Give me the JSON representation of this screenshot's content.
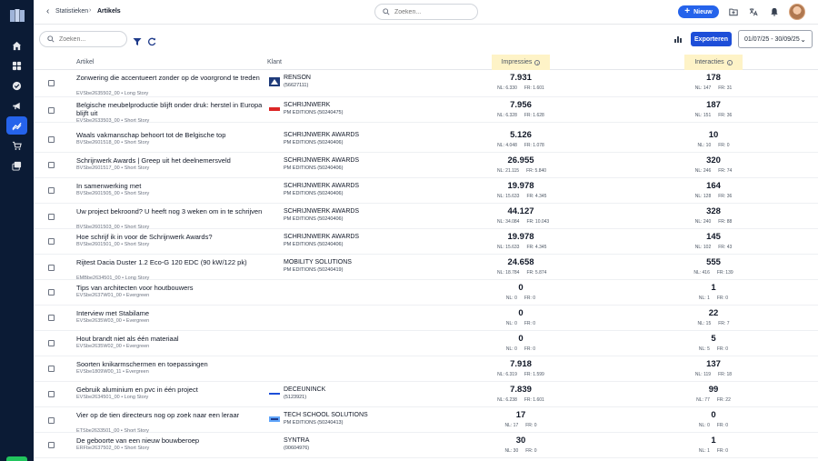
{
  "breadcrumb": {
    "parent": "Statistieken",
    "current": "Artikels"
  },
  "top_search": {
    "placeholder": "Zoeken..."
  },
  "new_button": {
    "label": "Nieuw"
  },
  "filter": {
    "search_placeholder": "Zoeken...",
    "export_label": "Exporteren",
    "date_range": "01/07/25 - 30/09/25"
  },
  "table": {
    "headers": {
      "artikel": "Artikel",
      "klant": "Klant",
      "impressies": "Impressies",
      "interacties": "Interacties"
    },
    "rows": [
      {
        "title": "Zonwering die accentueert zonder op de voorgrond te treden",
        "sub": "EVSbe2635502_00 • Long Story",
        "client": "RENSON",
        "client_sub": "(56627111)",
        "logo": "renson-logo",
        "imp": "7.931",
        "imp_nl": "NL: 6.330",
        "imp_fr": "FR: 1.601",
        "int": "178",
        "int_nl": "NL: 147",
        "int_fr": "FR: 31"
      },
      {
        "title": "Belgische meubelproductie blijft onder druk: herstel in Europa blijft uit",
        "sub": "EVSbe2633503_00 • Short Story",
        "client": "SCHRIJNWERK",
        "client_sub": "PM EDITIONS (50240475)",
        "logo": "red-logo",
        "imp": "7.956",
        "imp_nl": "NL: 6.328",
        "imp_fr": "FR: 1.628",
        "int": "187",
        "int_nl": "NL: 151",
        "int_fr": "FR: 36"
      },
      {
        "title": "Waals vakmanschap behoort tot de Belgische top",
        "sub": "BVSbe2601518_00 • Short Story",
        "client": "SCHRIJNWERK AWARDS",
        "client_sub": "PM EDITIONS (50240406)",
        "logo": "",
        "imp": "5.126",
        "imp_nl": "NL: 4.048",
        "imp_fr": "FR: 1.078",
        "int": "10",
        "int_nl": "NL: 10",
        "int_fr": "FR: 0"
      },
      {
        "title": "Schrijnwerk Awards | Greep uit het deelnemersveld",
        "sub": "BVSbe2601517_00 • Short Story",
        "client": "SCHRIJNWERK AWARDS",
        "client_sub": "PM EDITIONS (50240406)",
        "logo": "",
        "imp": "26.955",
        "imp_nl": "NL: 21.115",
        "imp_fr": "FR: 5.840",
        "int": "320",
        "int_nl": "NL: 246",
        "int_fr": "FR: 74"
      },
      {
        "title": "In samenwerking met",
        "sub": "BVSbe2601505_00 • Short Story",
        "client": "SCHRIJNWERK AWARDS",
        "client_sub": "PM EDITIONS (50240406)",
        "logo": "",
        "imp": "19.978",
        "imp_nl": "NL: 15.633",
        "imp_fr": "FR: 4.345",
        "int": "164",
        "int_nl": "NL: 128",
        "int_fr": "FR: 36"
      },
      {
        "title": "Uw project bekroond? U heeft nog 3 weken om in te schrijven",
        "sub": "BVSbe2601503_00 • Short Story",
        "client": "SCHRIJNWERK AWARDS",
        "client_sub": "PM EDITIONS (50240406)",
        "logo": "",
        "imp": "44.127",
        "imp_nl": "NL: 34.084",
        "imp_fr": "FR: 10.043",
        "int": "328",
        "int_nl": "NL: 240",
        "int_fr": "FR: 88"
      },
      {
        "title": "Hoe schrijf ik in voor de Schrijnwerk Awards?",
        "sub": "BVSbe2601501_00 • Short Story",
        "client": "SCHRIJNWERK AWARDS",
        "client_sub": "PM EDITIONS (50240406)",
        "logo": "",
        "imp": "19.978",
        "imp_nl": "NL: 15.633",
        "imp_fr": "FR: 4.345",
        "int": "145",
        "int_nl": "NL: 102",
        "int_fr": "FR: 43"
      },
      {
        "title": "Rijtest Dacia Duster 1.2 Eco-G 120 EDC (90 kW/122 pk)",
        "sub": "EMBbe2634501_00 • Long Story",
        "client": "MOBILITY SOLUTIONS",
        "client_sub": "PM EDITIONS (50240419)",
        "logo": "",
        "imp": "24.658",
        "imp_nl": "NL: 18.784",
        "imp_fr": "FR: 5.874",
        "int": "555",
        "int_nl": "NL: 416",
        "int_fr": "FR: 139"
      },
      {
        "title": "Tips van architecten voor houtbouwers",
        "sub": "EVSbe2637W01_00 • Evergreen",
        "client": "",
        "client_sub": "",
        "logo": "",
        "imp": "0",
        "imp_nl": "NL: 0",
        "imp_fr": "FR: 0",
        "int": "1",
        "int_nl": "NL: 1",
        "int_fr": "FR: 0"
      },
      {
        "title": "Interview met Stabilame",
        "sub": "EVSbe2635W03_00 • Evergreen",
        "client": "",
        "client_sub": "",
        "logo": "",
        "imp": "0",
        "imp_nl": "NL: 0",
        "imp_fr": "FR: 0",
        "int": "22",
        "int_nl": "NL: 15",
        "int_fr": "FR: 7"
      },
      {
        "title": "Hout brandt niet als één materiaal",
        "sub": "EVSbe2635W02_00 • Evergreen",
        "client": "",
        "client_sub": "",
        "logo": "",
        "imp": "0",
        "imp_nl": "NL: 0",
        "imp_fr": "FR: 0",
        "int": "5",
        "int_nl": "NL: 5",
        "int_fr": "FR: 0"
      },
      {
        "title": "Soorten knikarmschermen en toepassingen",
        "sub": "EVSbe1809W00_11 • Evergreen",
        "client": "",
        "client_sub": "",
        "logo": "",
        "imp": "7.918",
        "imp_nl": "NL: 6.319",
        "imp_fr": "FR: 1.599",
        "int": "137",
        "int_nl": "NL: 119",
        "int_fr": "FR: 18"
      },
      {
        "title": "Gebruik aluminium en pvc in één project",
        "sub": "EVSbe2634501_00 • Long Story",
        "client": "DECEUNINCK",
        "client_sub": "(5123921)",
        "logo": "deceuninck-logo",
        "imp": "7.839",
        "imp_nl": "NL: 6.238",
        "imp_fr": "FR: 1.601",
        "int": "99",
        "int_nl": "NL: 77",
        "int_fr": "FR: 22"
      },
      {
        "title": "Vier op de tien directeurs nog op zoek naar een leraar",
        "sub": "ETSbe2633501_00 • Short Story",
        "client": "TECH SCHOOL SOLUTIONS",
        "client_sub": "PM EDITIONS (50240413)",
        "logo": "tech-logo",
        "imp": "17",
        "imp_nl": "NL: 17",
        "imp_fr": "FR: 0",
        "int": "0",
        "int_nl": "NL: 0",
        "int_fr": "FR: 0"
      },
      {
        "title": "De geboorte van een nieuw bouwberoep",
        "sub": "ERFbe2637502_00 • Short Story",
        "client": "SYNTRA",
        "client_sub": "(00604976)",
        "logo": "",
        "imp": "30",
        "imp_nl": "NL: 30",
        "imp_fr": "FR: 0",
        "int": "1",
        "int_nl": "NL: 1",
        "int_fr": "FR: 0"
      }
    ]
  }
}
